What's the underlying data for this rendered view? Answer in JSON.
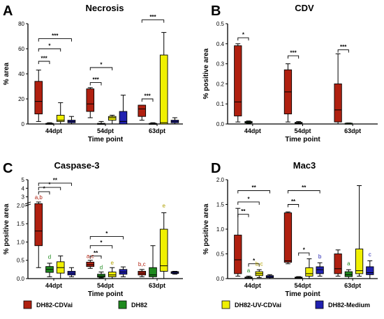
{
  "legend": [
    {
      "name": "DH82-CDVai",
      "color": "#b02010"
    },
    {
      "name": "DH82",
      "color": "#1e8a1e"
    },
    {
      "name": "DH82-UV-CDVai",
      "color": "#f0f000"
    },
    {
      "name": "DH82-Medium",
      "color": "#2020b0"
    }
  ],
  "chart_data": [
    {
      "type": "box",
      "letter": "A",
      "title": "Necrosis",
      "ylabel": "% area",
      "xlabel": "Time point",
      "categories": [
        "44dpt",
        "54dpt",
        "63dpt"
      ],
      "ylim": [
        0,
        80
      ],
      "yticks": [
        "0",
        "20",
        "40",
        "60",
        "80"
      ],
      "boxes": [
        [
          {
            "group": "DH82-CDVai",
            "min": 2,
            "q1": 8,
            "median": 18,
            "q3": 34,
            "max": 43
          },
          {
            "group": "DH82",
            "min": 0,
            "q1": 0,
            "median": 0,
            "q3": 0.5,
            "max": 1
          },
          {
            "group": "DH82-UV-CDVai",
            "min": 0,
            "q1": 2,
            "median": 3,
            "q3": 7,
            "max": 17
          },
          {
            "group": "DH82-Medium",
            "min": 0,
            "q1": 1,
            "median": 2,
            "q3": 3,
            "max": 6
          }
        ],
        [
          {
            "group": "DH82-CDVai",
            "min": 5,
            "q1": 10,
            "median": 16,
            "q3": 28,
            "max": 29
          },
          {
            "group": "DH82",
            "min": 0,
            "q1": 0,
            "median": 0,
            "q3": 0.5,
            "max": 2
          },
          {
            "group": "DH82-UV-CDVai",
            "min": 0,
            "q1": 3,
            "median": 5,
            "q3": 6,
            "max": 7
          },
          {
            "group": "DH82-Medium",
            "min": 0,
            "q1": 0,
            "median": 2,
            "q3": 10,
            "max": 23
          }
        ],
        [
          {
            "group": "DH82-CDVai",
            "min": 3,
            "q1": 6,
            "median": 12,
            "q3": 15,
            "max": 15
          },
          {
            "group": "DH82",
            "min": 0,
            "q1": 0,
            "median": 0,
            "q3": 0.5,
            "max": 1
          },
          {
            "group": "DH82-UV-CDVai",
            "min": 0,
            "q1": 0,
            "median": 1,
            "q3": 55,
            "max": 73
          },
          {
            "group": "DH82-Medium",
            "min": 0,
            "q1": 1,
            "median": 2,
            "q3": 3,
            "max": 5
          }
        ]
      ],
      "brackets": [
        {
          "cat": 0,
          "from": 0,
          "to": 1,
          "y": 50,
          "label": "***"
        },
        {
          "cat": 0,
          "from": 0,
          "to": 2,
          "y": 60,
          "label": "*"
        },
        {
          "cat": 0,
          "from": 0,
          "to": 3,
          "y": 68,
          "label": "***"
        },
        {
          "cat": 1,
          "from": 0,
          "to": 1,
          "y": 33,
          "label": "***"
        },
        {
          "cat": 1,
          "from": 0,
          "to": 2,
          "y": 45,
          "label": "*"
        },
        {
          "cat": 2,
          "from": 0,
          "to": 1,
          "y": 20,
          "label": "***"
        },
        {
          "cat": 2,
          "from": 0,
          "to": 2,
          "y": 83,
          "label": "***"
        }
      ],
      "letters": []
    },
    {
      "type": "box",
      "letter": "B",
      "title": "CDV",
      "ylabel": "% positive area",
      "xlabel": "Time point",
      "categories": [
        "44dpt",
        "54dpt",
        "63dpt"
      ],
      "ylim": [
        0,
        0.5
      ],
      "yticks": [
        "0.0",
        "0.1",
        "0.2",
        "0.3",
        "0.4",
        "0.5"
      ],
      "boxes": [
        [
          {
            "group": "DH82-CDVai",
            "min": 0.01,
            "q1": 0.04,
            "median": 0.11,
            "q3": 0.39,
            "max": 0.4
          },
          {
            "group": "DH82",
            "min": 0.002,
            "q1": 0.005,
            "median": 0.008,
            "q3": 0.012,
            "max": 0.015
          }
        ],
        [
          {
            "group": "DH82-CDVai",
            "min": 0.01,
            "q1": 0.05,
            "median": 0.16,
            "q3": 0.27,
            "max": 0.3
          },
          {
            "group": "DH82",
            "min": 0.001,
            "q1": 0.003,
            "median": 0.005,
            "q3": 0.008,
            "max": 0.012
          }
        ],
        [
          {
            "group": "DH82-CDVai",
            "min": 0.0,
            "q1": 0.01,
            "median": 0.07,
            "q3": 0.2,
            "max": 0.35
          },
          {
            "group": "DH82",
            "min": 0.001,
            "q1": 0.002,
            "median": 0.003,
            "q3": 0.004,
            "max": 0.005
          }
        ]
      ],
      "brackets": [
        {
          "cat": 0,
          "from": 0,
          "to": 1,
          "y": 0.43,
          "label": "*"
        },
        {
          "cat": 1,
          "from": 0,
          "to": 1,
          "y": 0.34,
          "label": "***"
        },
        {
          "cat": 2,
          "from": 0,
          "to": 1,
          "y": 0.37,
          "label": "***"
        }
      ],
      "letters": []
    },
    {
      "type": "box",
      "letter": "C",
      "title": "Caspase-3",
      "ylabel": "% positive area",
      "xlabel": "Time point",
      "categories": [
        "44dpt",
        "54dpt",
        "63dpt"
      ],
      "ylim": [
        0,
        5
      ],
      "yscale": "segmented",
      "yticks": [
        "0.0",
        "0.5",
        "1.0",
        "1.5",
        "2.0",
        "3",
        "4",
        "5"
      ],
      "boxes": [
        [
          {
            "group": "DH82-CDVai",
            "min": 0.3,
            "q1": 0.9,
            "median": 1.3,
            "q3": 2.2,
            "max": 2.4
          },
          {
            "group": "DH82",
            "min": 0.05,
            "q1": 0.17,
            "median": 0.25,
            "q3": 0.33,
            "max": 0.42
          },
          {
            "group": "DH82-UV-CDVai",
            "min": 0.0,
            "q1": 0.15,
            "median": 0.3,
            "q3": 0.46,
            "max": 0.62
          },
          {
            "group": "DH82-Medium",
            "min": 0.05,
            "q1": 0.1,
            "median": 0.15,
            "q3": 0.2,
            "max": 0.3
          }
        ],
        [
          {
            "group": "DH82-CDVai",
            "min": 0.28,
            "q1": 0.33,
            "median": 0.38,
            "q3": 0.45,
            "max": 0.5
          },
          {
            "group": "DH82",
            "min": 0.02,
            "q1": 0.04,
            "median": 0.07,
            "q3": 0.12,
            "max": 0.18
          },
          {
            "group": "DH82-UV-CDVai",
            "min": 0.0,
            "q1": 0.05,
            "median": 0.1,
            "q3": 0.18,
            "max": 0.3
          },
          {
            "group": "DH82-Medium",
            "min": 0.05,
            "q1": 0.12,
            "median": 0.18,
            "q3": 0.25,
            "max": 0.32
          }
        ],
        [
          {
            "group": "DH82-CDVai",
            "min": 0.05,
            "q1": 0.1,
            "median": 0.15,
            "q3": 0.2,
            "max": 0.25
          },
          {
            "group": "DH82",
            "min": 0.0,
            "q1": 0.05,
            "median": 0.1,
            "q3": 0.3,
            "max": 0.9
          },
          {
            "group": "DH82-UV-CDVai",
            "min": 0.0,
            "q1": 0.2,
            "median": 0.35,
            "q3": 1.35,
            "max": 1.8
          },
          {
            "group": "DH82-Medium",
            "min": 0.12,
            "q1": 0.14,
            "median": 0.17,
            "q3": 0.19,
            "max": 0.2
          }
        ]
      ],
      "brackets": [
        {
          "cat": 0,
          "from": 0,
          "to": 1,
          "y": 3.6,
          "label": "*"
        },
        {
          "cat": 0,
          "from": 0,
          "to": 2,
          "y": 4.1,
          "label": "*"
        },
        {
          "cat": 0,
          "from": 0,
          "to": 3,
          "y": 4.6,
          "label": "**"
        },
        {
          "cat": 1,
          "from": 0,
          "to": 1,
          "y": 0.62,
          "label": "**"
        },
        {
          "cat": 1,
          "from": 0,
          "to": 2,
          "y": 0.9,
          "label": "*"
        },
        {
          "cat": 1,
          "from": 0,
          "to": 3,
          "y": 1.15,
          "label": "*"
        }
      ],
      "letters": [
        {
          "cat": 0,
          "box": 0,
          "text": "a,b",
          "y": 2.55
        },
        {
          "cat": 0,
          "box": 1,
          "text": "d",
          "y": 0.5
        },
        {
          "cat": 1,
          "box": 0,
          "text": "a,c",
          "y": 0.52
        },
        {
          "cat": 1,
          "box": 1,
          "text": "d",
          "y": 0.22
        },
        {
          "cat": 1,
          "box": 2,
          "text": "e",
          "y": 0.34
        },
        {
          "cat": 2,
          "box": 0,
          "text": "b,c",
          "y": 0.3
        },
        {
          "cat": 2,
          "box": 2,
          "text": "e",
          "y": 1.9
        }
      ]
    },
    {
      "type": "box",
      "letter": "D",
      "title": "Mac3",
      "ylabel": "% positive area",
      "xlabel": "Time point",
      "categories": [
        "44dpt",
        "54dpt",
        "63dpt"
      ],
      "ylim": [
        0,
        2.0
      ],
      "yticks": [
        "0.0",
        "0.5",
        "1.0",
        "1.5",
        "2.0"
      ],
      "boxes": [
        [
          {
            "group": "DH82-CDVai",
            "min": 0.05,
            "q1": 0.1,
            "median": 0.38,
            "q3": 0.88,
            "max": 1.42
          },
          {
            "group": "DH82",
            "min": 0.0,
            "q1": 0.01,
            "median": 0.02,
            "q3": 0.03,
            "max": 0.05
          },
          {
            "group": "DH82-UV-CDVai",
            "min": 0.02,
            "q1": 0.06,
            "median": 0.1,
            "q3": 0.14,
            "max": 0.18
          },
          {
            "group": "DH82-Medium",
            "min": 0.0,
            "q1": 0.02,
            "median": 0.04,
            "q3": 0.06,
            "max": 0.08
          }
        ],
        [
          {
            "group": "DH82-CDVai",
            "min": 0.3,
            "q1": 0.33,
            "median": 0.36,
            "q3": 1.33,
            "max": 1.35
          },
          {
            "group": "DH82",
            "min": 0.0,
            "q1": 0.01,
            "median": 0.02,
            "q3": 0.03,
            "max": 0.04
          },
          {
            "group": "DH82-UV-CDVai",
            "min": 0.0,
            "q1": 0.05,
            "median": 0.1,
            "q3": 0.22,
            "max": 0.4
          },
          {
            "group": "DH82-Medium",
            "min": 0.05,
            "q1": 0.1,
            "median": 0.18,
            "q3": 0.24,
            "max": 0.32
          }
        ],
        [
          {
            "group": "DH82-CDVai",
            "min": 0.05,
            "q1": 0.1,
            "median": 0.2,
            "q3": 0.5,
            "max": 0.58
          },
          {
            "group": "DH82",
            "min": 0.0,
            "q1": 0.04,
            "median": 0.08,
            "q3": 0.14,
            "max": 0.18
          },
          {
            "group": "DH82-UV-CDVai",
            "min": 0.05,
            "q1": 0.1,
            "median": 0.16,
            "q3": 0.6,
            "max": 1.88
          },
          {
            "group": "DH82-Medium",
            "min": 0.0,
            "q1": 0.08,
            "median": 0.12,
            "q3": 0.24,
            "max": 0.36
          }
        ]
      ],
      "brackets": [
        {
          "cat": 0,
          "from": 0,
          "to": 1,
          "y": 1.3,
          "label": "**"
        },
        {
          "cat": 0,
          "from": 0,
          "to": 2,
          "y": 1.55,
          "label": "*"
        },
        {
          "cat": 0,
          "from": 0,
          "to": 3,
          "y": 1.78,
          "label": "**"
        },
        {
          "cat": 0,
          "from": 1,
          "to": 2,
          "y": 0.3,
          "label": "*"
        },
        {
          "cat": 1,
          "from": 0,
          "to": 1,
          "y": 1.5,
          "label": "**"
        },
        {
          "cat": 1,
          "from": 0,
          "to": 3,
          "y": 1.78,
          "label": "**"
        },
        {
          "cat": 1,
          "from": 1,
          "to": 2,
          "y": 0.52,
          "label": "*"
        }
      ],
      "letters": [
        {
          "cat": 0,
          "box": 1,
          "text": "a",
          "y": 0.1
        },
        {
          "cat": 0,
          "box": 2,
          "text": "b,c",
          "y": 0.23
        },
        {
          "cat": 1,
          "box": 3,
          "text": "b",
          "y": 0.38
        },
        {
          "cat": 2,
          "box": 1,
          "text": "a",
          "y": 0.24
        },
        {
          "cat": 2,
          "box": 3,
          "text": "c",
          "y": 0.42
        }
      ]
    }
  ]
}
